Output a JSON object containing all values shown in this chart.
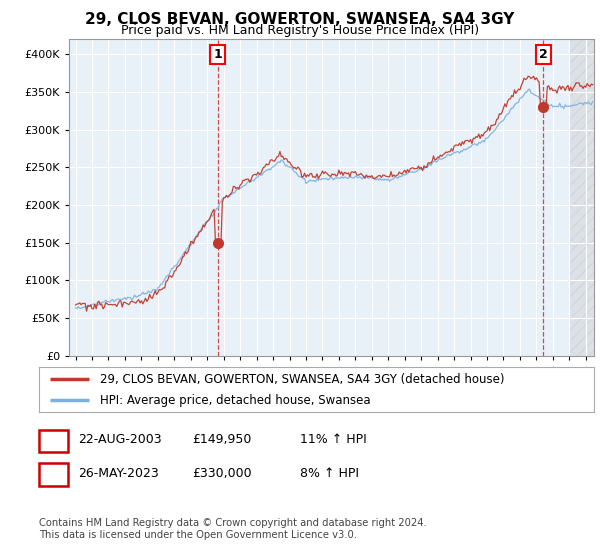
{
  "title": "29, CLOS BEVAN, GOWERTON, SWANSEA, SA4 3GY",
  "subtitle": "Price paid vs. HM Land Registry's House Price Index (HPI)",
  "legend_line1": "29, CLOS BEVAN, GOWERTON, SWANSEA, SA4 3GY (detached house)",
  "legend_line2": "HPI: Average price, detached house, Swansea",
  "footnote": "Contains HM Land Registry data © Crown copyright and database right 2024.\nThis data is licensed under the Open Government Licence v3.0.",
  "annotation1": {
    "num": "1",
    "date": "22-AUG-2003",
    "price": "£149,950",
    "hpi": "11% ↑ HPI"
  },
  "annotation2": {
    "num": "2",
    "date": "26-MAY-2023",
    "price": "£330,000",
    "hpi": "8% ↑ HPI"
  },
  "hpi_color": "#7aafe0",
  "price_color": "#c0392b",
  "background_color": "#ffffff",
  "plot_bg_color": "#e8f0f8",
  "grid_color": "#ffffff",
  "ylim": [
    0,
    420000
  ],
  "yticks": [
    0,
    50000,
    100000,
    150000,
    200000,
    250000,
    300000,
    350000,
    400000
  ],
  "x_start_year": 1995,
  "x_end_year": 2026
}
